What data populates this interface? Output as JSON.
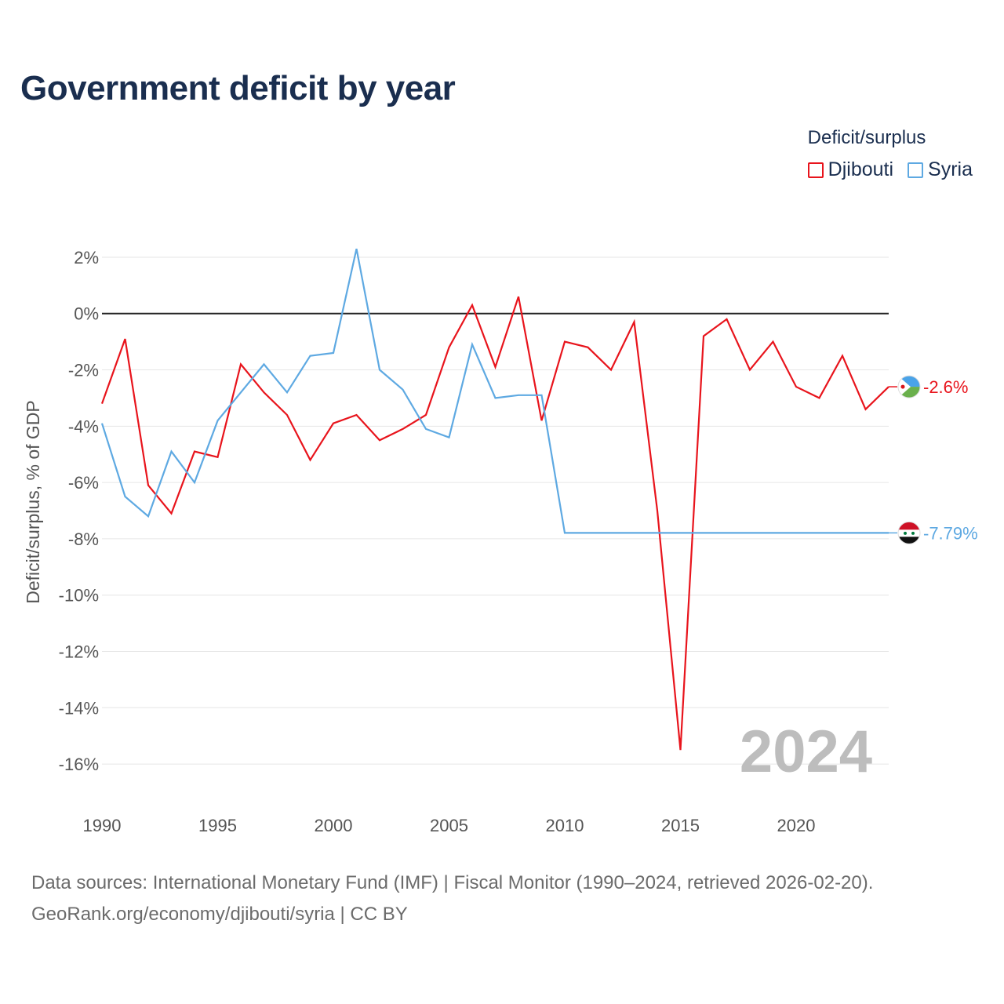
{
  "title": "Government deficit by year",
  "legend": {
    "title": "Deficit/surplus",
    "items": [
      {
        "label": "Djibouti",
        "color": "#e8141c"
      },
      {
        "label": "Syria",
        "color": "#5ea9e2"
      }
    ]
  },
  "chart_data": {
    "type": "line",
    "ylabel": "Deficit/surplus, % of GDP",
    "xlabel": "",
    "xlim": [
      1990,
      2024
    ],
    "ylim": [
      -17,
      2.5
    ],
    "x_ticks": [
      1990,
      1995,
      2000,
      2005,
      2010,
      2015,
      2020
    ],
    "y_ticks": [
      2,
      0,
      -2,
      -4,
      -6,
      -8,
      -10,
      -12,
      -14,
      -16
    ],
    "y_tick_labels": [
      "2%",
      "0%",
      "-2%",
      "-4%",
      "-6%",
      "-8%",
      "-10%",
      "-12%",
      "-14%",
      "-16%"
    ],
    "x_tick_labels": [
      "1990",
      "1995",
      "2000",
      "2005",
      "2010",
      "2015",
      "2020"
    ],
    "zero_line": true,
    "grid": true,
    "year_label": "2024",
    "series": [
      {
        "name": "Djibouti",
        "color": "#e8141c",
        "end_label": "-2.6%",
        "x": [
          1990,
          1991,
          1992,
          1993,
          1994,
          1995,
          1996,
          1997,
          1998,
          1999,
          2000,
          2001,
          2002,
          2003,
          2004,
          2005,
          2006,
          2007,
          2008,
          2009,
          2010,
          2011,
          2012,
          2013,
          2014,
          2015,
          2016,
          2017,
          2018,
          2019,
          2020,
          2021,
          2022,
          2023,
          2024
        ],
        "values": [
          -3.2,
          -0.9,
          -6.1,
          -7.1,
          -4.9,
          -5.1,
          -1.8,
          -2.8,
          -3.6,
          -5.2,
          -3.9,
          -3.6,
          -4.5,
          -4.1,
          -3.6,
          -1.2,
          0.3,
          -1.9,
          0.6,
          -3.8,
          -1.0,
          -1.2,
          -2.0,
          -0.3,
          -7.0,
          -15.5,
          -0.8,
          -0.2,
          -2.0,
          -1.0,
          -2.6,
          -3.0,
          -1.5,
          -3.4,
          -2.6
        ]
      },
      {
        "name": "Syria",
        "color": "#5ea9e2",
        "end_label": "-7.79%",
        "x": [
          1990,
          1991,
          1992,
          1993,
          1994,
          1995,
          1996,
          1997,
          1998,
          1999,
          2000,
          2001,
          2002,
          2003,
          2004,
          2005,
          2006,
          2007,
          2008,
          2009,
          2010,
          2011,
          2012,
          2013,
          2014,
          2015,
          2016,
          2017,
          2018,
          2019,
          2020,
          2021,
          2022,
          2023,
          2024
        ],
        "values": [
          -3.9,
          -6.5,
          -7.2,
          -4.9,
          -6.0,
          -3.8,
          -2.8,
          -1.8,
          -2.8,
          -1.5,
          -1.4,
          2.3,
          -2.0,
          -2.7,
          -4.1,
          -4.4,
          -1.1,
          -3.0,
          -2.9,
          -2.9,
          -7.79,
          -7.79,
          -7.79,
          -7.79,
          -7.79,
          -7.79,
          -7.79,
          -7.79,
          -7.79,
          -7.79,
          -7.79,
          -7.79,
          -7.79,
          -7.79,
          -7.79
        ]
      }
    ]
  },
  "source": {
    "line1": "Data sources: International Monetary Fund (IMF) | Fiscal Monitor (1990–2024, retrieved 2026-02-20).",
    "line2": "GeoRank.org/economy/djibouti/syria | CC BY"
  }
}
